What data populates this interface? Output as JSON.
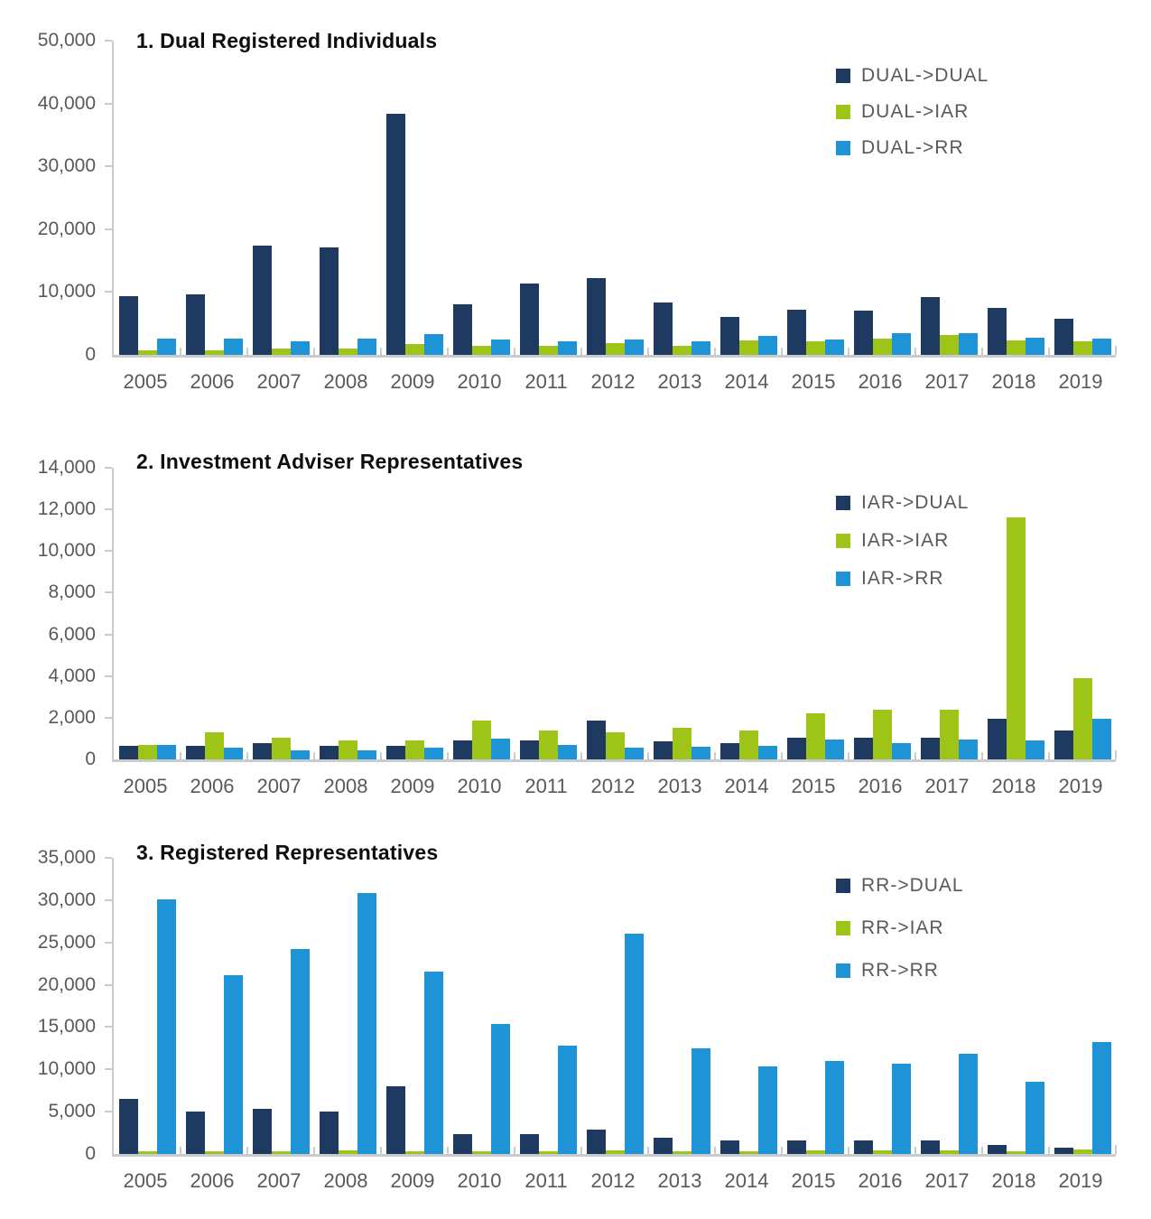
{
  "page": {
    "background": "#ffffff"
  },
  "colors": {
    "navy": "#1f3a60",
    "green": "#9ec417",
    "blue": "#1e93d6",
    "axis": "#c9ccce",
    "tick_label": "#595959",
    "title": "#0d0d0d"
  },
  "chart_data": [
    {
      "type": "bar",
      "title": "1. Dual Registered Individuals",
      "categories": [
        "2005",
        "2006",
        "2007",
        "2008",
        "2009",
        "2010",
        "2011",
        "2012",
        "2013",
        "2014",
        "2015",
        "2016",
        "2017",
        "2018",
        "2019"
      ],
      "series": [
        {
          "name": "DUAL->DUAL",
          "color": "#1f3a60",
          "values": [
            9400,
            9600,
            17400,
            17100,
            38300,
            8100,
            11400,
            12200,
            8400,
            6100,
            7200,
            7100,
            9200,
            7500,
            5700
          ]
        },
        {
          "name": "DUAL->IAR",
          "color": "#9ec417",
          "values": [
            700,
            700,
            1000,
            1000,
            1700,
            1500,
            1500,
            1900,
            1400,
            2300,
            2100,
            2600,
            3100,
            2300,
            2200
          ]
        },
        {
          "name": "DUAL->RR",
          "color": "#1e93d6",
          "values": [
            2600,
            2600,
            2100,
            2600,
            3300,
            2500,
            2100,
            2500,
            2200,
            3000,
            2500,
            3400,
            3500,
            2700,
            2600
          ]
        }
      ],
      "ylim": [
        0,
        50000
      ],
      "yticks": [
        "0",
        "10,000",
        "20,000",
        "30,000",
        "40,000",
        "50,000"
      ],
      "grid": false,
      "legend_position": "top-right"
    },
    {
      "type": "bar",
      "title": "2. Investment Adviser Representatives",
      "categories": [
        "2005",
        "2006",
        "2007",
        "2008",
        "2009",
        "2010",
        "2011",
        "2012",
        "2013",
        "2014",
        "2015",
        "2016",
        "2017",
        "2018",
        "2019"
      ],
      "series": [
        {
          "name": "IAR->DUAL",
          "color": "#1f3a60",
          "values": [
            650,
            650,
            800,
            650,
            650,
            900,
            900,
            1850,
            850,
            800,
            1050,
            1050,
            1050,
            1950,
            1400
          ]
        },
        {
          "name": "IAR->IAR",
          "color": "#9ec417",
          "values": [
            700,
            1300,
            1050,
            900,
            900,
            1850,
            1400,
            1300,
            1500,
            1400,
            2200,
            2400,
            2400,
            11600,
            3900
          ]
        },
        {
          "name": "IAR->RR",
          "color": "#1e93d6",
          "values": [
            700,
            550,
            450,
            450,
            550,
            1000,
            700,
            550,
            600,
            650,
            950,
            800,
            950,
            900,
            1950
          ]
        }
      ],
      "ylim": [
        0,
        14000
      ],
      "yticks": [
        "0",
        "2,000",
        "4,000",
        "6,000",
        "8,000",
        "10,000",
        "12,000",
        "14,000"
      ],
      "grid": false,
      "legend_position": "top-right"
    },
    {
      "type": "bar",
      "title": "3. Registered Representatives",
      "categories": [
        "2005",
        "2006",
        "2007",
        "2008",
        "2009",
        "2010",
        "2011",
        "2012",
        "2013",
        "2014",
        "2015",
        "2016",
        "2017",
        "2018",
        "2019"
      ],
      "series": [
        {
          "name": "RR->DUAL",
          "color": "#1f3a60",
          "values": [
            6500,
            5000,
            5300,
            5000,
            8000,
            2400,
            2400,
            2900,
            1900,
            1600,
            1600,
            1600,
            1600,
            1100,
            800
          ]
        },
        {
          "name": "RR->IAR",
          "color": "#9ec417",
          "values": [
            350,
            350,
            350,
            400,
            350,
            350,
            300,
            400,
            350,
            350,
            400,
            400,
            400,
            300,
            500
          ]
        },
        {
          "name": "RR->RR",
          "color": "#1e93d6",
          "values": [
            30100,
            21100,
            24200,
            30800,
            21600,
            15400,
            12800,
            26000,
            12500,
            10400,
            11000,
            10700,
            11800,
            8500,
            13200
          ]
        }
      ],
      "ylim": [
        0,
        35000
      ],
      "yticks": [
        "0",
        "5,000",
        "10,000",
        "15,000",
        "20,000",
        "25,000",
        "30,000",
        "35,000"
      ],
      "grid": false,
      "legend_position": "top-right"
    }
  ]
}
